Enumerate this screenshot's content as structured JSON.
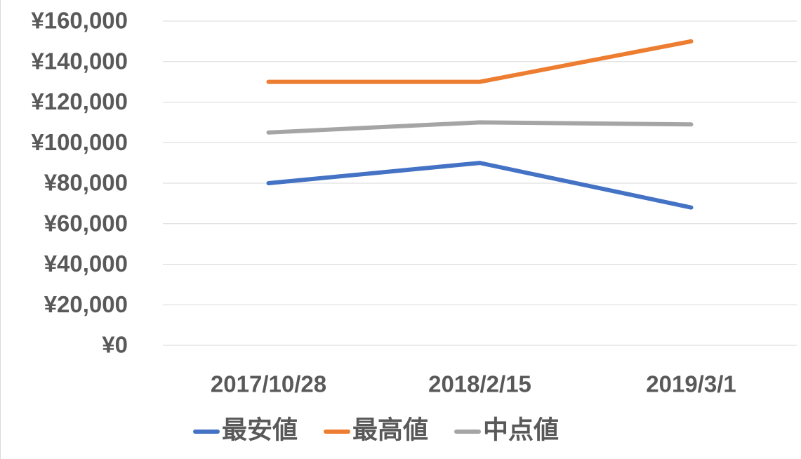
{
  "chart_data": {
    "type": "line",
    "categories": [
      "2017/10/28",
      "2018/2/15",
      "2019/3/1"
    ],
    "series": [
      {
        "name": "最安値",
        "color": "#4472c4",
        "values": [
          80000,
          90000,
          68000
        ]
      },
      {
        "name": "最高値",
        "color": "#ed7d31",
        "values": [
          130000,
          130000,
          150000
        ]
      },
      {
        "name": "中点値",
        "color": "#a5a5a5",
        "values": [
          105000,
          110000,
          109000
        ]
      }
    ],
    "ylim": [
      0,
      160000
    ],
    "yticks": [
      {
        "value": 0,
        "label": "¥0"
      },
      {
        "value": 20000,
        "label": "¥20,000"
      },
      {
        "value": 40000,
        "label": "¥40,000"
      },
      {
        "value": 60000,
        "label": "¥60,000"
      },
      {
        "value": 80000,
        "label": "¥80,000"
      },
      {
        "value": 100000,
        "label": "¥100,000"
      },
      {
        "value": 120000,
        "label": "¥120,000"
      },
      {
        "value": 140000,
        "label": "¥140,000"
      },
      {
        "value": 160000,
        "label": "¥160,000"
      }
    ],
    "grid": true,
    "legend": "bottom"
  }
}
